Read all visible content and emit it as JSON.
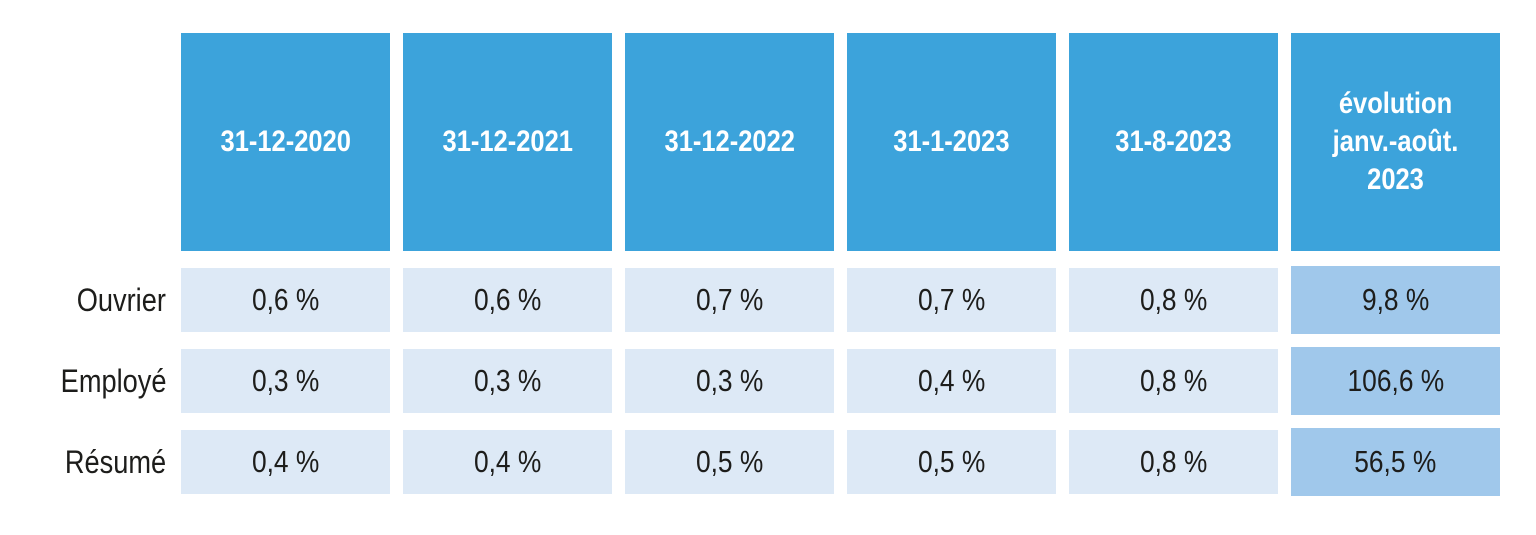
{
  "chart_data": {
    "type": "table",
    "title": "",
    "columns": [
      "31-12-2020",
      "31-12-2021",
      "31-12-2022",
      "31-1-2023",
      "31-8-2023",
      "évolution\njanv.-août. 2023"
    ],
    "row_labels": [
      "Ouvrier",
      "Employé",
      "Résumé"
    ],
    "rows": [
      {
        "label": "Ouvrier",
        "values": [
          "0,6 %",
          "0,6 %",
          "0,7 %",
          "0,7 %",
          "0,8 %",
          "9,8 %"
        ]
      },
      {
        "label": "Employé",
        "values": [
          "0,3 %",
          "0,3 %",
          "0,3 %",
          "0,4 %",
          "0,8 %",
          "106,6 %"
        ]
      },
      {
        "label": "Résumé",
        "values": [
          "0,4 %",
          "0,4 %",
          "0,5 %",
          "0,5 %",
          "0,8 %",
          "56,5 %"
        ]
      }
    ],
    "layout": {
      "header_column_count": 6,
      "evolution_column_index": 5,
      "grid_visible": false
    },
    "colors": {
      "header_bg": "#3ca3db",
      "header_text": "#ffffff",
      "cell_bg": "#dde9f6",
      "evolution_bg": "#a0c8eb",
      "body_text": "#1d1d1b",
      "background": "#ffffff"
    }
  }
}
